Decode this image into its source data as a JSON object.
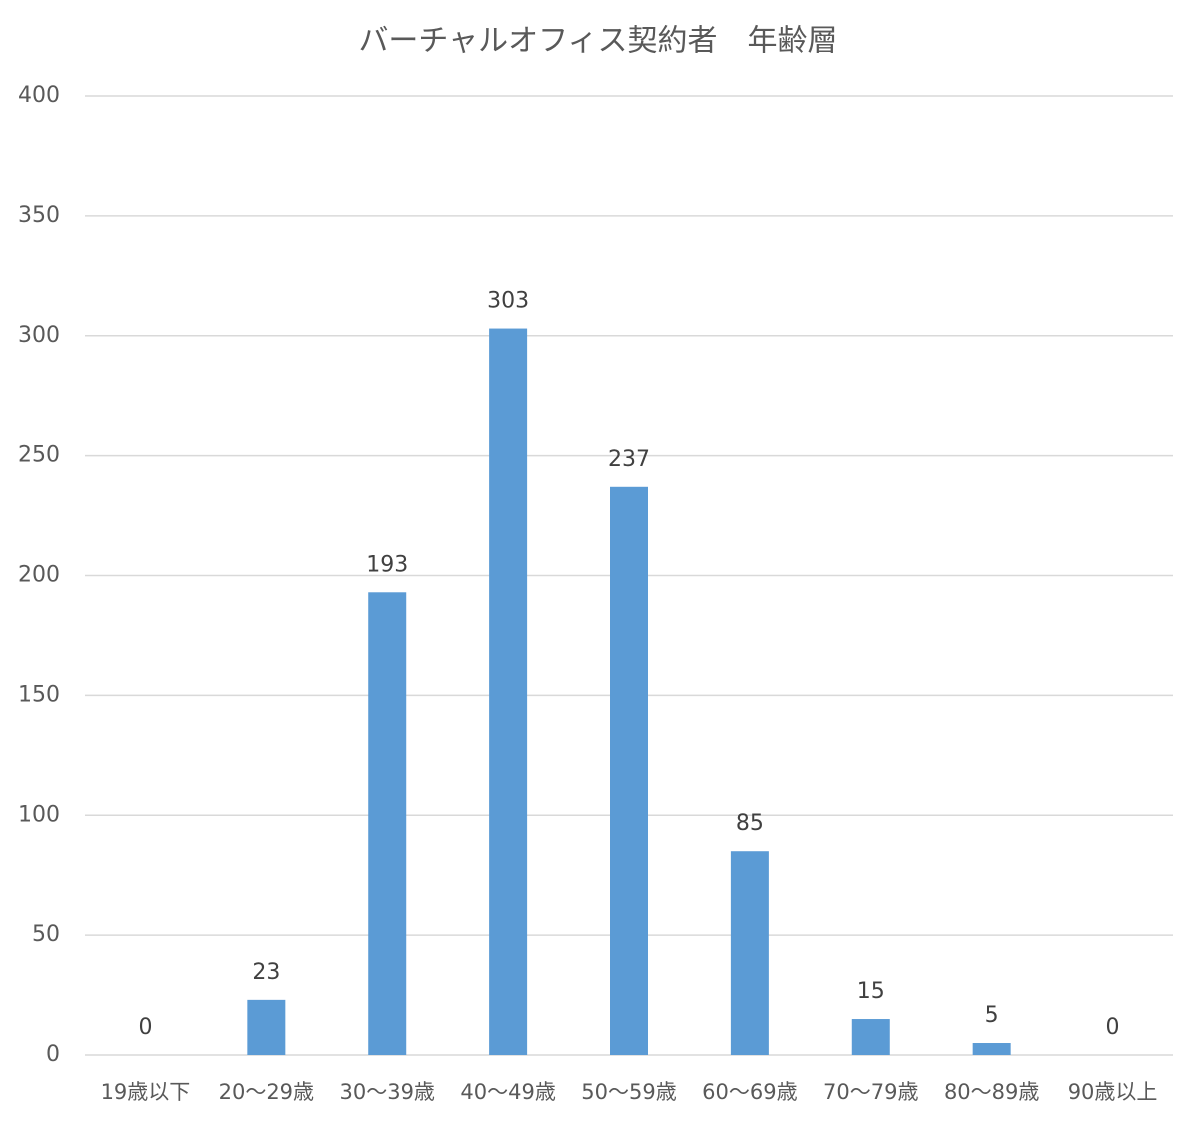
{
  "chart_data": {
    "type": "bar",
    "title": "バーチャルオフィス契約者　年齢層",
    "categories": [
      "19歳以下",
      "20～29歳",
      "30～39歳",
      "40～49歳",
      "50～59歳",
      "60～69歳",
      "70～79歳",
      "80～89歳",
      "90歳以上"
    ],
    "values": [
      0,
      23,
      193,
      303,
      237,
      85,
      15,
      5,
      0
    ],
    "color": "#5b9bd5",
    "ylim": [
      0,
      400
    ],
    "yticks": [
      0,
      50,
      100,
      150,
      200,
      250,
      300,
      350,
      400
    ],
    "grid": true
  }
}
